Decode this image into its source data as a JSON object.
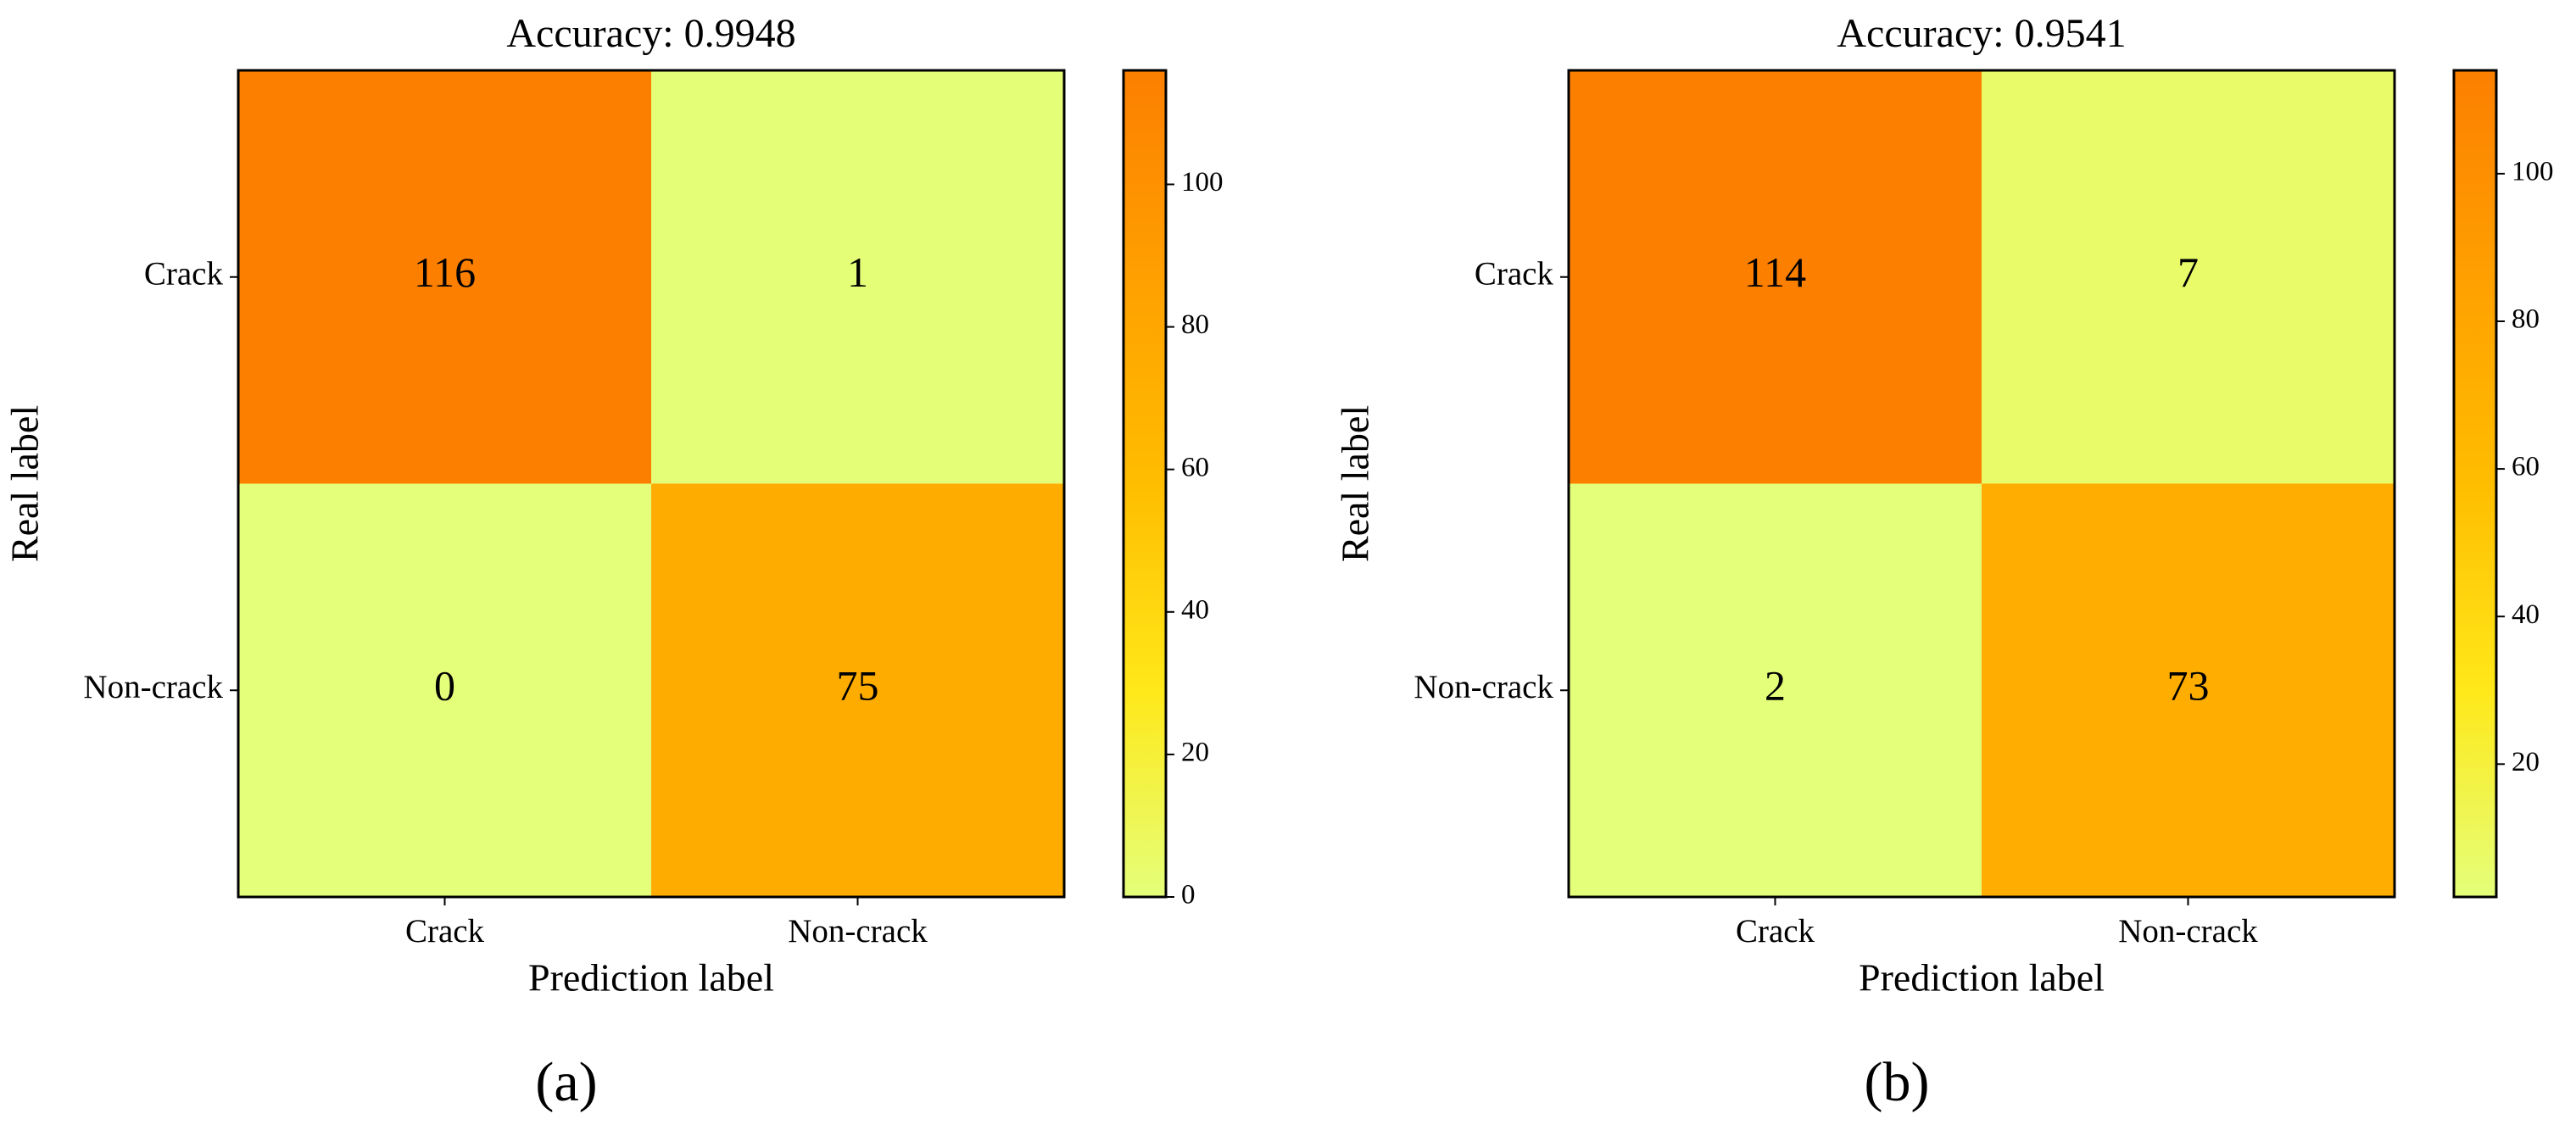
{
  "chart_data": [
    {
      "type": "heatmap",
      "title": "Accuracy: 0.9948",
      "x_label": "Prediction label",
      "y_label": "Real label",
      "x_categories": [
        "Crack",
        "Non-crack"
      ],
      "y_categories": [
        "Crack",
        "Non-crack"
      ],
      "values": [
        [
          116,
          1
        ],
        [
          0,
          75
        ]
      ],
      "clim": [
        0,
        116
      ],
      "colorbar_ticks": [
        0,
        20,
        40,
        60,
        80,
        100
      ],
      "colormap": [
        "#e4ff7a",
        "#ffe81a",
        "#ffbd00",
        "#ffa000",
        "#fc7f00"
      ],
      "panel_label": "(a)"
    },
    {
      "type": "heatmap",
      "title": "Accuracy: 0.9541",
      "x_label": "Prediction label",
      "y_label": "Real label",
      "x_categories": [
        "Crack",
        "Non-crack"
      ],
      "y_categories": [
        "Crack",
        "Non-crack"
      ],
      "values": [
        [
          114,
          7
        ],
        [
          2,
          73
        ]
      ],
      "clim": [
        2,
        114
      ],
      "colorbar_ticks": [
        20,
        40,
        60,
        80,
        100
      ],
      "colormap": [
        "#e4ff7a",
        "#ffe81a",
        "#ffbd00",
        "#ffa000",
        "#fc7f00"
      ],
      "panel_label": "(b)"
    }
  ]
}
